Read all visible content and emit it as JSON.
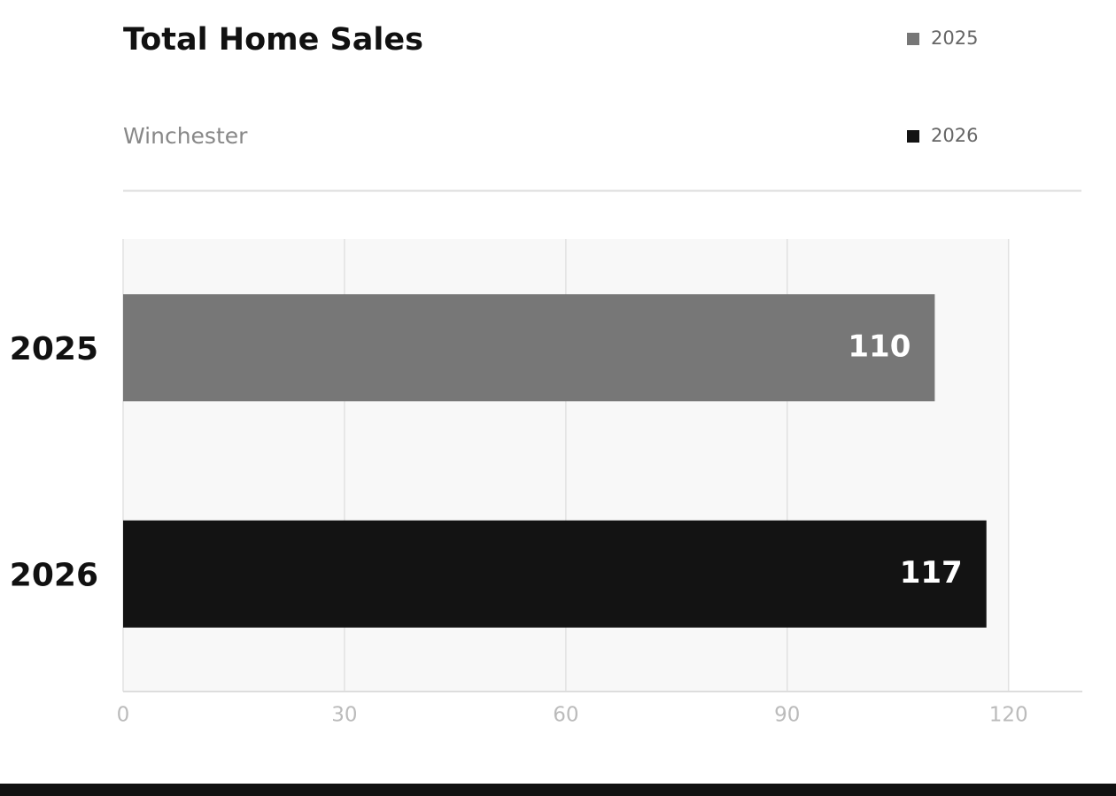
{
  "chart_data": {
    "type": "hbar",
    "title": "Total Home Sales",
    "subtitle": "Winchester",
    "categories": [
      "2025",
      "2026"
    ],
    "values": [
      110,
      117
    ],
    "colors": [
      "#777777",
      "#131313"
    ],
    "xlim": [
      0,
      130
    ],
    "xticks": [
      0,
      30,
      60,
      90,
      120
    ],
    "grid": true,
    "legend": "top-right"
  }
}
